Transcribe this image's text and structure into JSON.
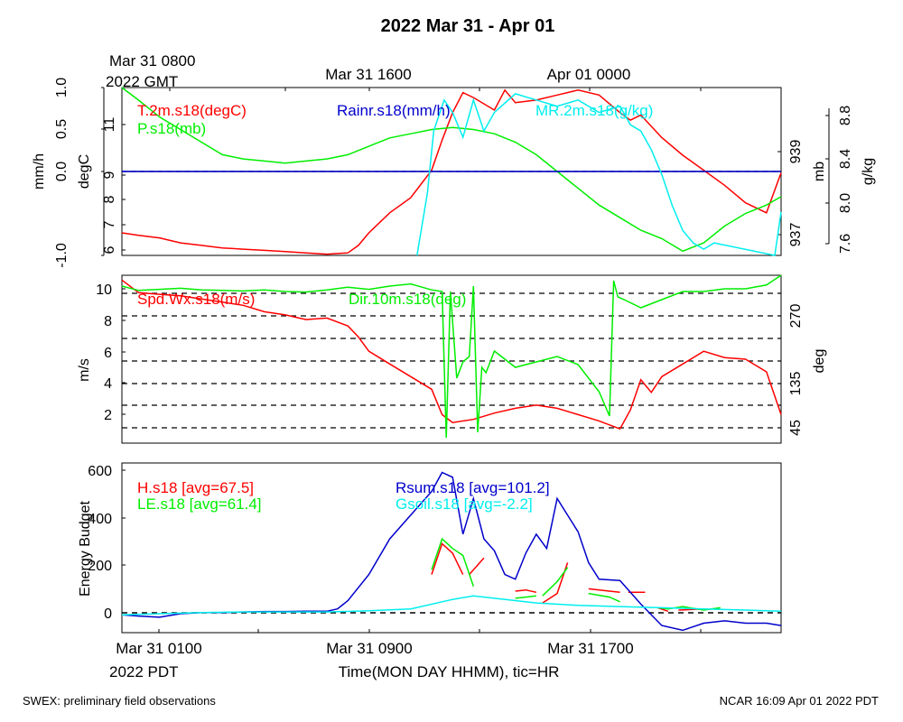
{
  "page": {
    "title": "2022 Mar 31 - Apr 01",
    "footer_left": "SWEX: preliminary field observations",
    "footer_right": "NCAR 16:09 Apr 01 2022 PDT"
  },
  "top_axis": {
    "label_line1": "Mar 31 0800",
    "label_line2": "2022 GMT",
    "ticks": [
      "Mar 31 1600",
      "Apr 01 0000"
    ]
  },
  "bottom_axis": {
    "ticks": [
      "Mar 31 0100",
      "Mar 31 0900",
      "Mar 31 1700"
    ],
    "label_line2": "2022 PDT",
    "xlabel": "Time(MON DAY HHMM), tic=HR"
  },
  "colors": {
    "red": "#ff0000",
    "green": "#00ee00",
    "blue": "#0000cc",
    "cyan": "#00eeee",
    "black": "#000000"
  },
  "chart_data": [
    {
      "type": "line",
      "x_unit": "hours since Mar 31 0000 PDT",
      "xlim": [
        0.2,
        31.7
      ],
      "grid": false,
      "series": [
        {
          "name": "T.2m.s18(degC)",
          "color": "#ff0000",
          "axis": "degC",
          "ylim": [
            5.9,
            12.6
          ],
          "x": [
            0.2,
            1,
            2,
            3,
            4,
            5,
            6,
            7,
            8,
            9,
            10,
            11,
            11.5,
            12,
            13,
            14,
            15,
            15.5,
            16,
            16.5,
            17,
            18,
            18.5,
            19,
            20,
            21,
            22,
            23,
            24,
            24.5,
            25,
            26,
            27,
            28,
            29,
            30,
            31,
            31.7
          ],
          "y": [
            6.8,
            6.7,
            6.6,
            6.4,
            6.3,
            6.2,
            6.15,
            6.1,
            6.05,
            6.0,
            5.95,
            6.0,
            6.3,
            6.8,
            7.6,
            8.2,
            9.3,
            10.5,
            11.6,
            12.4,
            12.2,
            11.7,
            12.5,
            12.0,
            12.1,
            12.3,
            12.5,
            12.3,
            11.6,
            11.3,
            11.5,
            10.6,
            9.9,
            9.3,
            8.7,
            8.0,
            7.6,
            9.2
          ]
        },
        {
          "name": "P.s18(mb)",
          "color": "#00ee00",
          "axis": "mb",
          "ylim": [
            936.6,
            940.6
          ],
          "x": [
            0.2,
            1,
            2,
            3,
            4,
            5,
            6,
            7,
            8,
            9,
            10,
            11,
            12,
            13,
            14,
            15,
            16,
            17,
            18,
            19,
            20,
            21,
            22,
            23,
            24,
            25,
            26,
            27,
            28,
            29,
            30,
            31,
            31.7
          ],
          "y": [
            940.6,
            940.3,
            939.9,
            939.6,
            939.3,
            939.0,
            938.9,
            938.85,
            938.8,
            938.85,
            938.9,
            939.0,
            939.2,
            939.4,
            939.5,
            939.6,
            939.65,
            939.6,
            939.5,
            939.3,
            939.0,
            938.6,
            938.2,
            937.8,
            937.5,
            937.2,
            937.0,
            936.7,
            936.9,
            937.3,
            937.6,
            937.8,
            938.0
          ]
        },
        {
          "name": "Rainr.s18(mm/h)",
          "color": "#0000cc",
          "axis": "mm/h",
          "ylim": [
            -1.0,
            1.0
          ],
          "x": [
            0.2,
            31.7
          ],
          "y": [
            0.0,
            0.0
          ]
        },
        {
          "name": "MR.2m.s18(g/kg)",
          "color": "#00eeee",
          "axis": "g/kg",
          "ylim": [
            7.6,
            8.95
          ],
          "x": [
            14.3,
            14.8,
            15.1,
            15.3,
            15.6,
            16,
            16.5,
            17,
            17.5,
            18,
            19,
            20,
            21,
            22,
            23,
            24,
            24.5,
            25,
            25.5,
            26,
            26.5,
            27,
            27.5,
            28,
            28.5,
            31.4,
            31.7
          ],
          "y": [
            7.6,
            8.1,
            8.6,
            8.7,
            8.85,
            8.75,
            8.55,
            8.85,
            8.6,
            8.75,
            8.9,
            8.85,
            8.8,
            8.85,
            8.75,
            8.8,
            8.65,
            8.6,
            8.45,
            8.25,
            8.0,
            7.8,
            7.7,
            7.65,
            7.7,
            7.6,
            7.95
          ]
        }
      ],
      "axes": [
        {
          "name": "mm/h",
          "side": "left",
          "ticks": [
            "-1.0",
            "0.0",
            "0.5",
            "1.0"
          ]
        },
        {
          "name": "degC",
          "side": "left",
          "ticks": [
            "6",
            "7",
            "8",
            "9",
            "11"
          ]
        },
        {
          "name": "mb",
          "side": "right",
          "ticks": [
            "937",
            "939"
          ]
        },
        {
          "name": "g/kg",
          "side": "right",
          "ticks": [
            "7.6",
            "8.0",
            "8.4",
            "8.8"
          ]
        }
      ]
    },
    {
      "type": "line",
      "xlim": [
        0.2,
        31.7
      ],
      "grid": "dashed lines at Dir ticks",
      "series": [
        {
          "name": "Spd.Wx.s18(m/s)",
          "color": "#ff0000",
          "axis": "m/s",
          "ylim": [
            0.2,
            10.8
          ],
          "x": [
            0.2,
            1,
            2,
            3,
            4,
            5,
            6,
            7,
            8,
            9,
            10,
            11,
            11.5,
            12,
            13,
            14,
            15,
            15.5,
            16,
            17,
            18,
            19,
            20,
            21,
            22,
            23,
            24,
            24.5,
            25,
            25.5,
            26,
            27,
            28,
            29,
            30,
            31,
            31.7
          ],
          "y": [
            10.5,
            9.7,
            9.6,
            9.5,
            9.3,
            9.1,
            8.9,
            8.5,
            8.3,
            8.0,
            8.1,
            7.6,
            6.9,
            6.0,
            5.2,
            4.4,
            3.6,
            2.0,
            1.5,
            1.7,
            2.1,
            2.4,
            2.6,
            2.4,
            2.0,
            1.6,
            1.1,
            2.3,
            4.2,
            3.4,
            4.4,
            5.2,
            6.0,
            5.6,
            5.5,
            4.7,
            2.0
          ]
        },
        {
          "name": "Dir.10m.s18(deg)",
          "color": "#00ee00",
          "axis": "deg",
          "ylim": [
            0,
            310
          ],
          "x": [
            0.2,
            1,
            2,
            3,
            4,
            5,
            6,
            7,
            8,
            9,
            10,
            11,
            12,
            13,
            14,
            15,
            15.5,
            15.7,
            15.9,
            16.2,
            16.5,
            16.8,
            17,
            17.2,
            17.4,
            17.6,
            18,
            19,
            20,
            21,
            22,
            23,
            23.5,
            23.7,
            23.9,
            24.2,
            25,
            26,
            27,
            28,
            29,
            30,
            31,
            31.7
          ],
          "y": [
            290,
            282,
            284,
            286,
            283,
            282,
            281,
            283,
            280,
            279,
            283,
            288,
            284,
            290,
            294,
            283,
            280,
            10,
            280,
            120,
            150,
            160,
            290,
            20,
            140,
            130,
            170,
            140,
            150,
            160,
            145,
            95,
            50,
            300,
            270,
            265,
            250,
            265,
            280,
            280,
            285,
            285,
            292,
            310
          ]
        }
      ],
      "axes": [
        {
          "name": "m/s",
          "side": "left",
          "ticks": [
            "2",
            "4",
            "6",
            "8",
            "10"
          ]
        },
        {
          "name": "deg",
          "side": "right",
          "ticks": [
            "45",
            "135",
            "270"
          ]
        }
      ]
    },
    {
      "type": "line",
      "xlim": [
        0.2,
        31.7
      ],
      "ylim": [
        -95,
        620
      ],
      "ylabel": "Energy Budget",
      "yticks": [
        "0",
        "200",
        "400",
        "600"
      ],
      "series": [
        {
          "name": "H.s18 [avg=67.5]",
          "color": "#ff0000",
          "segments": [
            {
              "x": [
                15.0,
                15.5,
                16.0,
                16.5
              ],
              "y": [
                150,
                280,
                240,
                150
              ]
            },
            {
              "x": [
                16.8,
                17.5
              ],
              "y": [
                150,
                220
              ]
            },
            {
              "x": [
                19.0,
                19.5,
                20.0
              ],
              "y": [
                80,
                85,
                75
              ]
            },
            {
              "x": [
                20.3,
                21.0,
                21.5
              ],
              "y": [
                30,
                70,
                200
              ]
            },
            {
              "x": [
                22.5,
                23.5,
                24.0
              ],
              "y": [
                90,
                80,
                75
              ]
            },
            {
              "x": [
                24.4,
                25.2
              ],
              "y": [
                75,
                75
              ]
            },
            {
              "x": [
                25.8,
                26.3
              ],
              "y": [
                10,
                -5
              ]
            },
            {
              "x": [
                26.8,
                28.0
              ],
              "y": [
                0,
                5
              ]
            }
          ]
        },
        {
          "name": "LE.s18 [avg=61.4]",
          "color": "#00ee00",
          "segments": [
            {
              "x": [
                15.0,
                15.5,
                16.0,
                16.5,
                17.0
              ],
              "y": [
                170,
                300,
                260,
                230,
                100
              ]
            },
            {
              "x": [
                19.0,
                19.5,
                20.0
              ],
              "y": [
                50,
                55,
                60
              ]
            },
            {
              "x": [
                20.3,
                21.0,
                21.5
              ],
              "y": [
                60,
                120,
                180
              ]
            },
            {
              "x": [
                22.5,
                23.5,
                24.0
              ],
              "y": [
                70,
                55,
                35
              ]
            },
            {
              "x": [
                25.8,
                26.3,
                27.0,
                28.0,
                28.8
              ],
              "y": [
                10,
                5,
                15,
                0,
                10
              ]
            }
          ]
        },
        {
          "name": "Rsum.s18 [avg=101.2]",
          "color": "#0000cc",
          "x": [
            0.2,
            1,
            2,
            3,
            4,
            5,
            6,
            7,
            8,
            9,
            10,
            10.5,
            11,
            12,
            13,
            14,
            15,
            15.5,
            16,
            16.5,
            17,
            17.5,
            18,
            18.5,
            19,
            19.5,
            20,
            20.5,
            21,
            22,
            22.5,
            23,
            24,
            25,
            26,
            27,
            28,
            29,
            30,
            31,
            31.7
          ],
          "y": [
            -20,
            -25,
            -30,
            -15,
            -10,
            -10,
            -8,
            -6,
            -6,
            -5,
            -5,
            5,
            40,
            150,
            300,
            400,
            500,
            580,
            560,
            320,
            470,
            300,
            250,
            150,
            130,
            240,
            320,
            260,
            470,
            330,
            200,
            130,
            125,
            25,
            -65,
            -85,
            -55,
            -45,
            -55,
            -55,
            -65
          ]
        },
        {
          "name": "Gsoil.s18 [avg=-2.2]",
          "color": "#00eeee",
          "x": [
            0.2,
            2,
            4,
            6,
            8,
            10,
            12,
            14,
            16,
            17,
            18,
            20,
            22,
            24,
            26,
            28,
            30,
            31.7
          ],
          "y": [
            -20,
            -15,
            -10,
            -8,
            -8,
            -8,
            -3,
            5,
            45,
            60,
            50,
            30,
            20,
            15,
            10,
            5,
            0,
            -5
          ]
        }
      ]
    }
  ]
}
